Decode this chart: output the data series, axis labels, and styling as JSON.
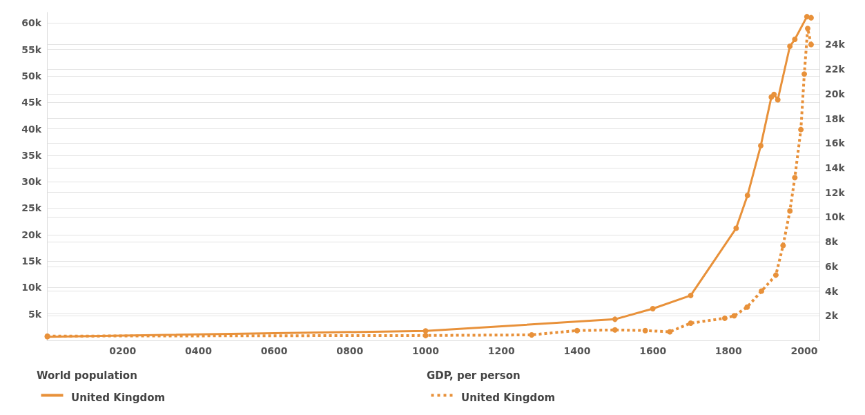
{
  "chart_data": {
    "type": "line",
    "annotations": [
      "World population",
      "GDP, per person"
    ],
    "xlim": [
      0,
      2040
    ],
    "xticks": [
      {
        "value": 200,
        "label": "0200"
      },
      {
        "value": 400,
        "label": "0400"
      },
      {
        "value": 600,
        "label": "0600"
      },
      {
        "value": 800,
        "label": "0800"
      },
      1000,
      1200,
      1400,
      1600,
      1800,
      2000
    ],
    "ylim": [
      0,
      62000
    ],
    "yticks": [
      {
        "value": 5000,
        "label": "5k"
      },
      {
        "value": 10000,
        "label": "10k"
      },
      {
        "value": 15000,
        "label": "15k"
      },
      {
        "value": 20000,
        "label": "20k"
      },
      {
        "value": 25000,
        "label": "25k"
      },
      {
        "value": 30000,
        "label": "30k"
      },
      {
        "value": 35000,
        "label": "35k"
      },
      {
        "value": 40000,
        "label": "40k"
      },
      {
        "value": 45000,
        "label": "45k"
      },
      {
        "value": 50000,
        "label": "50k"
      },
      {
        "value": 55000,
        "label": "55k"
      },
      {
        "value": 60000,
        "label": "60k"
      }
    ],
    "y2lim": [
      0,
      26600
    ],
    "y2ticks": [
      {
        "value": 2000,
        "label": "2k"
      },
      {
        "value": 4000,
        "label": "4k"
      },
      {
        "value": 6000,
        "label": "6k"
      },
      {
        "value": 8000,
        "label": "8k"
      },
      {
        "value": 10000,
        "label": "10k"
      },
      {
        "value": 12000,
        "label": "12k"
      },
      {
        "value": 14000,
        "label": "14k"
      },
      {
        "value": 16000,
        "label": "16k"
      },
      {
        "value": 18000,
        "label": "18k"
      },
      {
        "value": 20000,
        "label": "20k"
      },
      {
        "value": 22000,
        "label": "22k"
      },
      {
        "value": 24000,
        "label": "24k"
      }
    ],
    "grid": "y",
    "legend": "bottom",
    "marker": "circle",
    "series": [
      {
        "name": "United Kingdom",
        "color": "#e8913a",
        "line_style": "solid",
        "x": [
          1,
          1000,
          1500,
          1600,
          1700,
          1820,
          1850,
          1885,
          1913,
          1920,
          1930,
          1962,
          1975,
          2007,
          2018
        ],
        "values": [
          700,
          1800,
          4000,
          6000,
          8500,
          21200,
          27400,
          36800,
          46000,
          46500,
          45500,
          55600,
          56900,
          61200,
          61000
        ]
      },
      {
        "name": "United Kingdom",
        "color": "#e8913a",
        "line_style": "dotted",
        "axis": "y2",
        "x": [
          1,
          1000,
          1280,
          1400,
          1500,
          1580,
          1645,
          1700,
          1790,
          1815,
          1849,
          1887,
          1925,
          1944,
          1962,
          1975,
          1991,
          2000,
          2009,
          2018
        ],
        "values": [
          350,
          400,
          450,
          800,
          850,
          800,
          700,
          1400,
          1800,
          2000,
          2700,
          4000,
          5300,
          7700,
          10500,
          13200,
          17100,
          21600,
          25300,
          24000
        ]
      }
    ]
  }
}
